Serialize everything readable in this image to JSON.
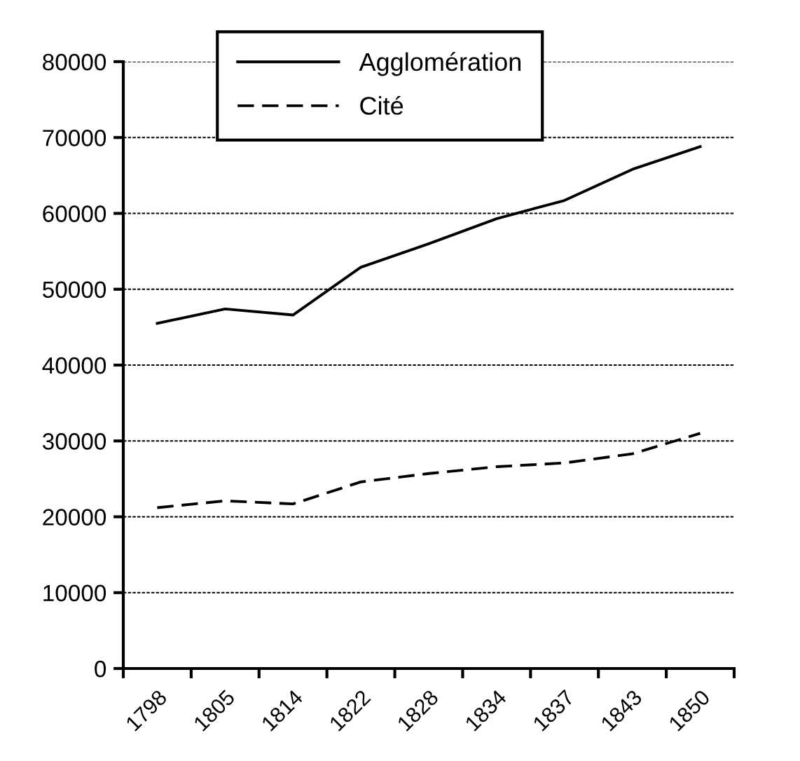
{
  "chart_data": {
    "type": "line",
    "categories": [
      "1798",
      "1805",
      "1814",
      "1822",
      "1828",
      "1834",
      "1837",
      "1843",
      "1850"
    ],
    "series": [
      {
        "name": "Agglomération",
        "color": "#000000",
        "line_style": "solid",
        "values": [
          45500,
          47400,
          46600,
          52900,
          56000,
          59300,
          61700,
          65800,
          68800
        ]
      },
      {
        "name": "Cité",
        "color": "#000000",
        "line_style": "dashed",
        "values": [
          21200,
          22100,
          21700,
          24600,
          25700,
          26600,
          27100,
          28300,
          31000
        ]
      }
    ],
    "ylim": [
      0,
      80000
    ],
    "yticks": [
      0,
      10000,
      20000,
      30000,
      40000,
      50000,
      60000,
      70000,
      80000
    ],
    "grid": "y",
    "legend": "top",
    "marker": "none"
  }
}
